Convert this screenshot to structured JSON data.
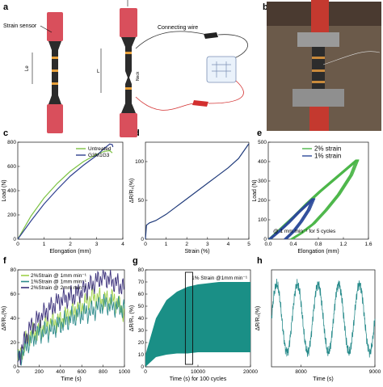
{
  "panels": {
    "a": "a",
    "b": "b",
    "c": "c",
    "d": "d",
    "e": "e",
    "f": "f",
    "g": "g",
    "h": "h"
  },
  "schematic": {
    "strain_sensor_label": "Strain sensor",
    "connecting_wire_label": "Connecting wire",
    "le_label": "Le",
    "l_label": "L",
    "neck_label": "Neck",
    "colors": {
      "grip": "#d94f5c",
      "body": "#2b2b2b",
      "band": "#e8a13c",
      "wire": "#333333",
      "clip_red": "#d32f2f",
      "clip_black": "#222222"
    }
  },
  "photo": {
    "description_visible": false
  },
  "chart_data": [
    {
      "id": "c",
      "type": "line",
      "xlabel": "Elongation (mm)",
      "ylabel": "Load (N)",
      "xlim": [
        0,
        4
      ],
      "ylim": [
        0,
        800
      ],
      "xticks": [
        "0",
        "1",
        "2",
        "3",
        "4"
      ],
      "yticks": [
        "0",
        "200",
        "400",
        "600",
        "800"
      ],
      "legend_position": "top-right",
      "series": [
        {
          "name": "Untreated",
          "color": "#7cc242",
          "x": [
            0,
            0.5,
            1,
            1.5,
            2,
            2.5,
            3,
            3.3,
            3.5,
            3.6
          ],
          "y": [
            0,
            190,
            340,
            460,
            560,
            640,
            700,
            725,
            730,
            712
          ]
        },
        {
          "name": "G3M1G3",
          "color": "#2e3f8f",
          "x": [
            0,
            0.5,
            1,
            1.5,
            2,
            2.5,
            3,
            3.3,
            3.5,
            3.6,
            3.62
          ],
          "y": [
            0,
            150,
            290,
            410,
            520,
            610,
            690,
            750,
            785,
            780,
            760
          ]
        }
      ]
    },
    {
      "id": "d",
      "type": "line",
      "xlabel": "Strain (%)",
      "ylabel": "ΔR/R₀(%)",
      "xlim": [
        0,
        5
      ],
      "ylim": [
        0,
        125
      ],
      "xticks": [
        "0",
        "1",
        "2",
        "3",
        "4",
        "5"
      ],
      "yticks": [
        "0",
        "50",
        "100"
      ],
      "series": [
        {
          "color": "#1f3a7a",
          "x": [
            0,
            0.05,
            0.2,
            0.5,
            1,
            1.5,
            2,
            2.5,
            3,
            3.5,
            4,
            4.5,
            5
          ],
          "y": [
            0,
            18,
            21,
            24,
            32,
            42,
            52,
            62,
            72,
            82,
            92,
            104,
            123
          ]
        }
      ]
    },
    {
      "id": "e",
      "type": "line",
      "xlabel": "Elongation (mm)",
      "ylabel": "Load (N)",
      "xlim": [
        0,
        1.6
      ],
      "ylim": [
        0,
        500
      ],
      "xticks": [
        "0.0",
        "0.4",
        "0.8",
        "1.2",
        "1.6"
      ],
      "yticks": [
        "0",
        "100",
        "200",
        "300",
        "400",
        "500"
      ],
      "legend_position": "top",
      "annotation": "@ 1 mm min⁻¹ for 5 cycles",
      "series": [
        {
          "name": "2% strain",
          "color": "#4bb648",
          "x": [
            0,
            0.2,
            0.4,
            0.6,
            0.8,
            1.0,
            1.2,
            1.4,
            1.3,
            1.1,
            0.9,
            0.7,
            0.5,
            0.35
          ],
          "y": [
            0,
            60,
            120,
            185,
            245,
            300,
            355,
            410,
            330,
            230,
            150,
            80,
            30,
            0
          ]
        },
        {
          "name": "1% strain",
          "color": "#2c4a9a",
          "x": [
            0,
            0.15,
            0.3,
            0.45,
            0.6,
            0.7,
            0.62,
            0.5,
            0.38,
            0.25
          ],
          "y": [
            0,
            40,
            85,
            135,
            180,
            210,
            150,
            90,
            40,
            0
          ]
        }
      ]
    },
    {
      "id": "f",
      "type": "line",
      "xlabel": "Time (s)",
      "ylabel": "ΔR/R₀(%)",
      "xlim": [
        0,
        1000
      ],
      "ylim": [
        0,
        80
      ],
      "xticks": [
        "0",
        "200",
        "400",
        "600",
        "800",
        "1000"
      ],
      "yticks": [
        "0",
        "20",
        "40",
        "60",
        "80"
      ],
      "legend_position": "top-left",
      "series": [
        {
          "name": "2%Strain @ 1mm min⁻¹",
          "color": "#9ed04a",
          "x": [
            0,
            100,
            200,
            300,
            400,
            500,
            600,
            700,
            800,
            900,
            1000
          ],
          "y": [
            5,
            25,
            30,
            36,
            38,
            45,
            50,
            58,
            55,
            56,
            45
          ]
        },
        {
          "name": "1%Strain @ 1mm min⁻¹",
          "color": "#2e8b8b",
          "x": [
            0,
            100,
            200,
            300,
            400,
            500,
            600,
            700,
            800,
            900,
            1000
          ],
          "y": [
            5,
            20,
            28,
            30,
            35,
            40,
            44,
            46,
            52,
            50,
            48
          ]
        },
        {
          "name": "2%Strain @ 2mm min⁻¹",
          "color": "#3a2f7a",
          "x": [
            0,
            100,
            200,
            300,
            400,
            500,
            600,
            700,
            800,
            900,
            1000
          ],
          "y": [
            5,
            30,
            40,
            48,
            55,
            58,
            62,
            68,
            75,
            70,
            65
          ]
        }
      ]
    },
    {
      "id": "g",
      "type": "area",
      "xlabel": "Time (s) for 100 cycles",
      "ylabel": "ΔR/R₀ (%)",
      "xlim": [
        0,
        20000
      ],
      "ylim": [
        0,
        80
      ],
      "xticks": [
        "0",
        "10000",
        "20000"
      ],
      "yticks": [
        "0",
        "10",
        "20",
        "30",
        "40",
        "50",
        "60",
        "70",
        "80"
      ],
      "annotation": "1% Strain @1mm min⁻¹",
      "highlight_box_x": [
        7600,
        9000
      ],
      "series": [
        {
          "color": "#1a8f86",
          "envelope_upper": [
            10,
            40,
            55,
            62,
            66,
            68,
            69,
            70,
            70,
            70,
            70
          ],
          "envelope_lower": [
            0,
            8,
            10,
            11,
            11,
            12,
            12,
            12,
            12,
            12,
            12
          ],
          "x": [
            0,
            2000,
            4000,
            6000,
            8000,
            10000,
            12000,
            14000,
            16000,
            18000,
            20000
          ]
        }
      ]
    },
    {
      "id": "h",
      "type": "line",
      "xlabel": "Time (s)",
      "ylabel": "ΔR/R₀(%)",
      "xlim": [
        7600,
        9000
      ],
      "ylim": [
        0,
        80
      ],
      "xticks": [
        "8000",
        "9000"
      ],
      "series": [
        {
          "color": "#2a8c8c",
          "cycles": 5,
          "peak": 68,
          "trough": 12
        }
      ]
    }
  ]
}
